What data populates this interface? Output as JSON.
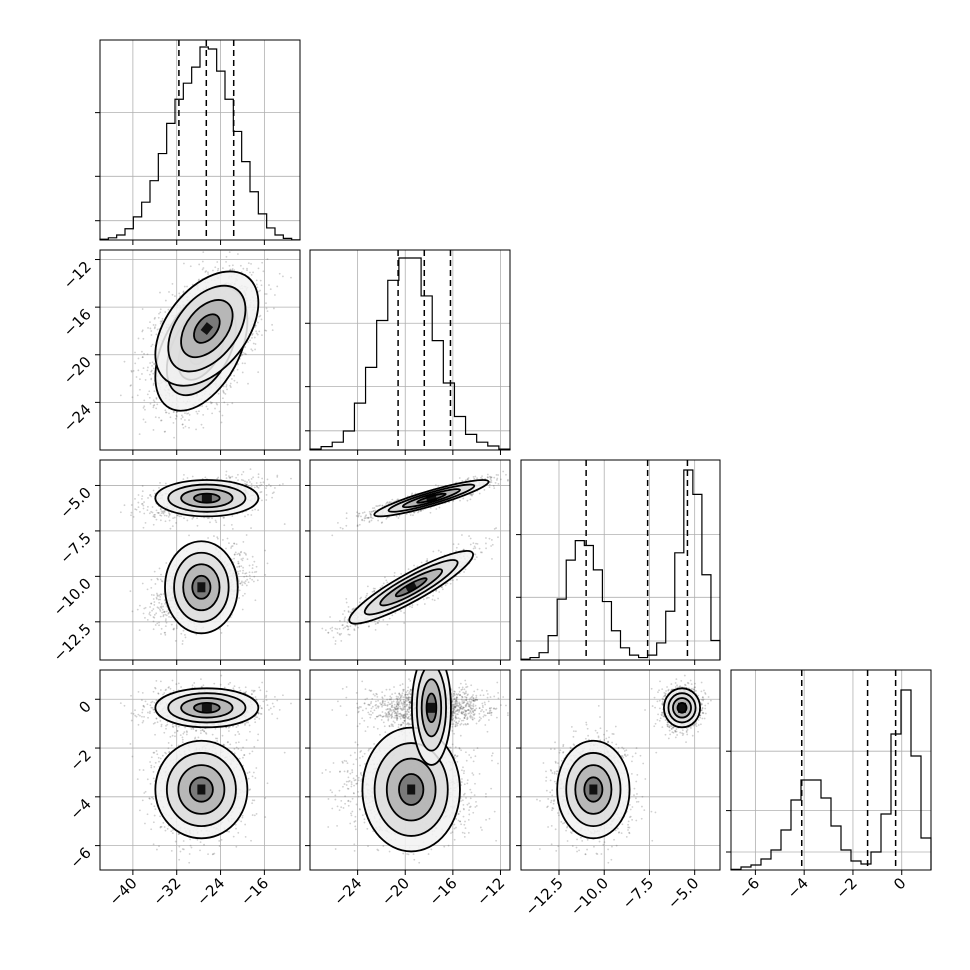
{
  "chart_data": {
    "type": "corner",
    "n_params": 4,
    "params": [
      {
        "range": [
          -46,
          -9.5
        ],
        "ticks": [
          -40,
          -32,
          -24,
          -16
        ],
        "tick_labels": [
          "−40",
          "−32",
          "−24",
          "−16"
        ],
        "quantiles": [
          -31.6,
          -26.6,
          -21.6
        ],
        "hist": {
          "edges_range": [
            -46,
            -9.5
          ],
          "counts": [
            0.4,
            1.1,
            2.5,
            5.6,
            11.5,
            18.8,
            29.5,
            43,
            58,
            70,
            78,
            86,
            96,
            95,
            84,
            70,
            54,
            39,
            24,
            13,
            6,
            2.5,
            0.8,
            0.1
          ]
        }
      },
      {
        "range": [
          -28,
          -11.2
        ],
        "ticks": [
          -24,
          -20,
          -16,
          -12
        ],
        "tick_labels": [
          "−24",
          "−20",
          "−16",
          "−12"
        ],
        "quantiles": [
          -20.6,
          -18.4,
          -16.2
        ],
        "hist": {
          "edges_range": [
            -28,
            -11.2
          ],
          "counts": [
            0.4,
            1.5,
            3.5,
            8.5,
            21,
            37,
            58,
            76,
            86,
            86,
            69,
            49,
            30,
            15,
            7,
            3.5,
            1.8,
            0.4
          ]
        }
      },
      {
        "range": [
          -14.6,
          -3.6
        ],
        "ticks": [
          -12.5,
          -10,
          -7.5,
          -5
        ],
        "tick_labels": [
          "−12.5",
          "−10.0",
          "−7.5",
          "−5.0"
        ],
        "quantiles": [
          -11.0,
          -7.6,
          -5.4
        ],
        "hist": {
          "edges_range": [
            -14.6,
            -3.6
          ],
          "counts": [
            0.3,
            1,
            3,
            10,
            25,
            41,
            49,
            47,
            37,
            24,
            12,
            5,
            2,
            1,
            2,
            7,
            20,
            44,
            78,
            68,
            35,
            8
          ]
        }
      },
      {
        "range": [
          -7,
          1.2
        ],
        "ticks": [
          -6,
          -4,
          -2,
          0
        ],
        "tick_labels": [
          "−6",
          "−4",
          "−2",
          "0"
        ],
        "quantiles": [
          -4.1,
          -1.4,
          -0.25
        ],
        "hist": {
          "edges_range": [
            -7,
            1.2
          ],
          "counts": [
            0.3,
            1.5,
            2.5,
            5.5,
            10,
            20,
            35,
            45,
            45,
            36,
            22,
            10,
            4.5,
            3,
            9,
            28,
            68,
            90,
            57,
            16
          ]
        }
      }
    ],
    "modes": [
      {
        "weight": 0.5,
        "mean": [
          -27.5,
          -19.5,
          -10.6,
          -3.7
        ],
        "sd": [
          4.2,
          2.6,
          1.0,
          1.0
        ],
        "corr": [
          [
            0,
            1,
            0.45
          ],
          [
            1,
            2,
            0.9
          ]
        ]
      },
      {
        "weight": 0.5,
        "mean": [
          -26.5,
          -17.8,
          -5.7,
          -0.35
        ],
        "sd": [
          4.7,
          2.4,
          0.5,
          0.4
        ],
        "corr": [
          [
            0,
            1,
            0.45
          ],
          [
            1,
            2,
            0.9
          ]
        ]
      }
    ],
    "grid": true,
    "quantile_line_style": "dashed"
  }
}
